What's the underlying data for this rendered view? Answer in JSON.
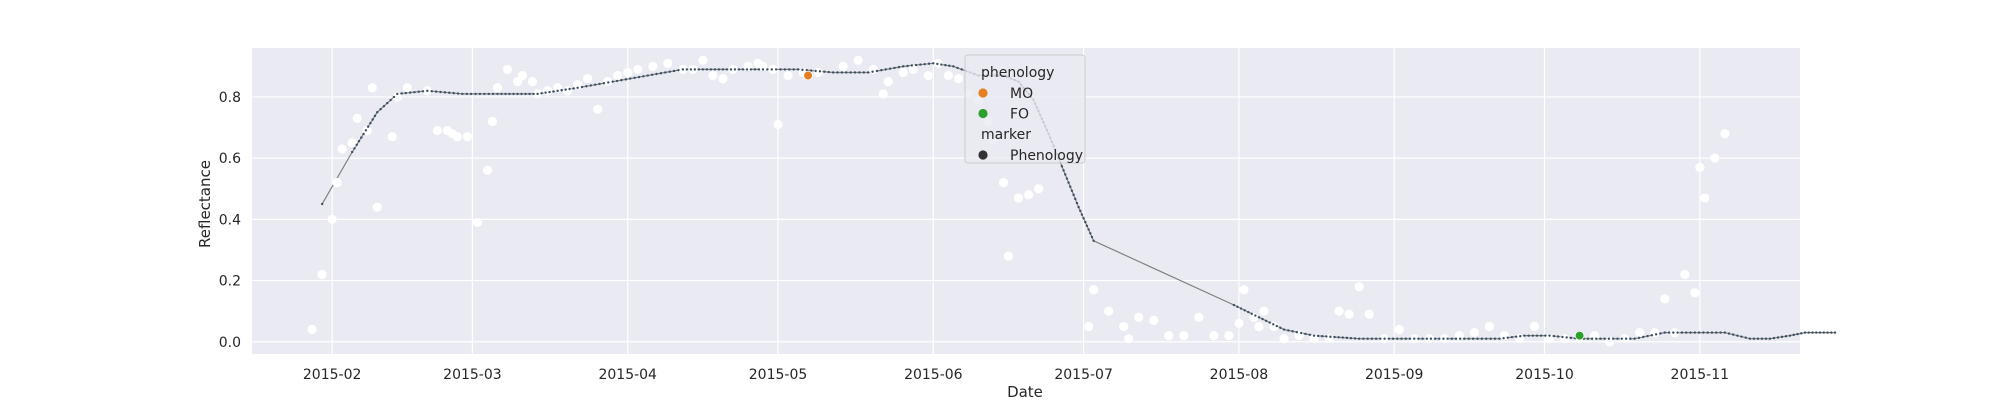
{
  "chart_data": {
    "type": "line",
    "xlabel": "Date",
    "ylabel": "Reflectance",
    "xlim": [
      "2015-01-16",
      "2015-11-21"
    ],
    "ylim": [
      -0.04,
      0.96
    ],
    "grid": true,
    "x_ticks": [
      "2015-02-01",
      "2015-03-01",
      "2015-04-01",
      "2015-05-01",
      "2015-06-01",
      "2015-07-01",
      "2015-08-01",
      "2015-09-01",
      "2015-10-01",
      "2015-11-01"
    ],
    "x_tick_labels": [
      "2015-02",
      "2015-03",
      "2015-04",
      "2015-05",
      "2015-06",
      "2015-07",
      "2015-08",
      "2015-09",
      "2015-10",
      "2015-11"
    ],
    "y_ticks": [
      0.0,
      0.2,
      0.4,
      0.6,
      0.8
    ],
    "y_tick_labels": [
      "0.0",
      "0.2",
      "0.4",
      "0.6",
      "0.8"
    ],
    "legend": {
      "placement": "top-center",
      "sections": [
        {
          "title": "phenology",
          "entries": [
            {
              "label": "MO",
              "color": "#e67e22"
            },
            {
              "label": "FO",
              "color": "#2ca02c"
            }
          ]
        },
        {
          "title": "marker",
          "entries": [
            {
              "label": "Phenology",
              "color": "#333333"
            }
          ]
        }
      ]
    },
    "colors": {
      "panel_bg": "#eaeaf2",
      "grid": "#ffffff",
      "raw_points": "#ffffff",
      "fitted_line": "#808080",
      "fitted_markers": "#3b4f5f",
      "MO": "#e67e22",
      "FO": "#2ca02c"
    },
    "series": [
      {
        "kind": "scatter",
        "role": "raw observations",
        "points": [
          [
            "2015-01-28",
            0.04
          ],
          [
            "2015-01-30",
            0.22
          ],
          [
            "2015-02-01",
            0.4
          ],
          [
            "2015-02-02",
            0.52
          ],
          [
            "2015-02-03",
            0.63
          ],
          [
            "2015-02-05",
            0.65
          ],
          [
            "2015-02-06",
            0.73
          ],
          [
            "2015-02-08",
            0.69
          ],
          [
            "2015-02-09",
            0.83
          ],
          [
            "2015-02-10",
            0.44
          ],
          [
            "2015-02-13",
            0.67
          ],
          [
            "2015-02-14",
            0.8
          ],
          [
            "2015-02-16",
            0.83
          ],
          [
            "2015-02-20",
            0.82
          ],
          [
            "2015-02-22",
            0.69
          ],
          [
            "2015-02-24",
            0.69
          ],
          [
            "2015-02-25",
            0.68
          ],
          [
            "2015-02-26",
            0.67
          ],
          [
            "2015-02-28",
            0.67
          ],
          [
            "2015-03-02",
            0.39
          ],
          [
            "2015-03-04",
            0.56
          ],
          [
            "2015-03-05",
            0.72
          ],
          [
            "2015-03-06",
            0.83
          ],
          [
            "2015-03-08",
            0.89
          ],
          [
            "2015-03-10",
            0.85
          ],
          [
            "2015-03-11",
            0.87
          ],
          [
            "2015-03-13",
            0.85
          ],
          [
            "2015-03-14",
            0.81
          ],
          [
            "2015-03-16",
            0.82
          ],
          [
            "2015-03-18",
            0.83
          ],
          [
            "2015-03-20",
            0.82
          ],
          [
            "2015-03-22",
            0.84
          ],
          [
            "2015-03-24",
            0.86
          ],
          [
            "2015-03-26",
            0.76
          ],
          [
            "2015-03-28",
            0.85
          ],
          [
            "2015-03-30",
            0.87
          ],
          [
            "2015-04-01",
            0.88
          ],
          [
            "2015-04-03",
            0.89
          ],
          [
            "2015-04-06",
            0.9
          ],
          [
            "2015-04-09",
            0.91
          ],
          [
            "2015-04-12",
            0.89
          ],
          [
            "2015-04-14",
            0.89
          ],
          [
            "2015-04-16",
            0.92
          ],
          [
            "2015-04-18",
            0.87
          ],
          [
            "2015-04-20",
            0.86
          ],
          [
            "2015-04-22",
            0.89
          ],
          [
            "2015-04-25",
            0.9
          ],
          [
            "2015-04-27",
            0.91
          ],
          [
            "2015-04-28",
            0.9
          ],
          [
            "2015-04-30",
            0.89
          ],
          [
            "2015-05-01",
            0.71
          ],
          [
            "2015-05-03",
            0.87
          ],
          [
            "2015-05-06",
            0.88
          ],
          [
            "2015-05-09",
            0.88
          ],
          [
            "2015-05-14",
            0.9
          ],
          [
            "2015-05-17",
            0.92
          ],
          [
            "2015-05-20",
            0.89
          ],
          [
            "2015-05-22",
            0.81
          ],
          [
            "2015-05-23",
            0.85
          ],
          [
            "2015-05-26",
            0.88
          ],
          [
            "2015-05-28",
            0.89
          ],
          [
            "2015-05-31",
            0.87
          ],
          [
            "2015-06-02",
            0.91
          ],
          [
            "2015-06-04",
            0.87
          ],
          [
            "2015-06-06",
            0.86
          ],
          [
            "2015-06-08",
            0.81
          ],
          [
            "2015-06-10",
            0.79
          ],
          [
            "2015-06-12",
            0.72
          ],
          [
            "2015-06-13",
            0.66
          ],
          [
            "2015-06-15",
            0.52
          ],
          [
            "2015-06-16",
            0.28
          ],
          [
            "2015-06-18",
            0.47
          ],
          [
            "2015-06-20",
            0.48
          ],
          [
            "2015-06-22",
            0.5
          ],
          [
            "2015-07-02",
            0.05
          ],
          [
            "2015-07-03",
            0.17
          ],
          [
            "2015-07-06",
            0.1
          ],
          [
            "2015-07-09",
            0.05
          ],
          [
            "2015-07-10",
            0.01
          ],
          [
            "2015-07-12",
            0.08
          ],
          [
            "2015-07-15",
            0.07
          ],
          [
            "2015-07-18",
            0.02
          ],
          [
            "2015-07-21",
            0.02
          ],
          [
            "2015-07-24",
            0.08
          ],
          [
            "2015-07-27",
            0.02
          ],
          [
            "2015-07-30",
            0.02
          ],
          [
            "2015-08-01",
            0.06
          ],
          [
            "2015-08-02",
            0.17
          ],
          [
            "2015-08-04",
            0.08
          ],
          [
            "2015-08-05",
            0.05
          ],
          [
            "2015-08-06",
            0.1
          ],
          [
            "2015-08-08",
            0.05
          ],
          [
            "2015-08-10",
            0.01
          ],
          [
            "2015-08-13",
            0.02
          ],
          [
            "2015-08-16",
            0.01
          ],
          [
            "2015-08-19",
            0.01
          ],
          [
            "2015-08-21",
            0.1
          ],
          [
            "2015-08-23",
            0.09
          ],
          [
            "2015-08-25",
            0.18
          ],
          [
            "2015-08-27",
            0.09
          ],
          [
            "2015-08-30",
            0.01
          ],
          [
            "2015-09-02",
            0.04
          ],
          [
            "2015-09-05",
            0.01
          ],
          [
            "2015-09-08",
            0.01
          ],
          [
            "2015-09-11",
            0.01
          ],
          [
            "2015-09-14",
            0.02
          ],
          [
            "2015-09-17",
            0.03
          ],
          [
            "2015-09-20",
            0.05
          ],
          [
            "2015-09-23",
            0.02
          ],
          [
            "2015-09-26",
            0.01
          ],
          [
            "2015-09-29",
            0.05
          ],
          [
            "2015-10-02",
            0.01
          ],
          [
            "2015-10-05",
            0.01
          ],
          [
            "2015-10-08",
            0.01
          ],
          [
            "2015-10-11",
            0.02
          ],
          [
            "2015-10-14",
            0.0
          ],
          [
            "2015-10-17",
            0.01
          ],
          [
            "2015-10-20",
            0.03
          ],
          [
            "2015-10-23",
            0.03
          ],
          [
            "2015-10-25",
            0.14
          ],
          [
            "2015-10-27",
            0.03
          ],
          [
            "2015-10-29",
            0.22
          ],
          [
            "2015-10-31",
            0.16
          ],
          [
            "2015-11-01",
            0.57
          ],
          [
            "2015-11-02",
            0.47
          ],
          [
            "2015-11-04",
            0.6
          ],
          [
            "2015-11-06",
            0.68
          ]
        ]
      },
      {
        "kind": "line",
        "role": "fitted curve",
        "points": [
          [
            "2015-01-30",
            0.45
          ],
          [
            "2015-02-05",
            0.62
          ],
          [
            "2015-02-10",
            0.75
          ],
          [
            "2015-02-14",
            0.81
          ],
          [
            "2015-02-20",
            0.82
          ],
          [
            "2015-02-27",
            0.81
          ],
          [
            "2015-03-06",
            0.81
          ],
          [
            "2015-03-14",
            0.81
          ],
          [
            "2015-03-22",
            0.83
          ],
          [
            "2015-03-29",
            0.85
          ],
          [
            "2015-04-05",
            0.87
          ],
          [
            "2015-04-12",
            0.89
          ],
          [
            "2015-04-20",
            0.89
          ],
          [
            "2015-04-28",
            0.89
          ],
          [
            "2015-05-05",
            0.89
          ],
          [
            "2015-05-12",
            0.88
          ],
          [
            "2015-05-19",
            0.88
          ],
          [
            "2015-05-26",
            0.9
          ],
          [
            "2015-06-01",
            0.91
          ],
          [
            "2015-06-05",
            0.9
          ],
          [
            "2015-06-10",
            0.87
          ],
          [
            "2015-06-15",
            0.87
          ],
          [
            "2015-06-18",
            0.85
          ],
          [
            "2015-06-21",
            0.79
          ],
          [
            "2015-06-24",
            0.68
          ],
          [
            "2015-06-27",
            0.56
          ],
          [
            "2015-06-30",
            0.44
          ],
          [
            "2015-07-03",
            0.33
          ],
          [
            "2015-07-31",
            0.12
          ],
          [
            "2015-08-05",
            0.08
          ],
          [
            "2015-08-10",
            0.04
          ],
          [
            "2015-08-16",
            0.02
          ],
          [
            "2015-08-25",
            0.01
          ],
          [
            "2015-09-05",
            0.01
          ],
          [
            "2015-09-15",
            0.01
          ],
          [
            "2015-09-22",
            0.01
          ],
          [
            "2015-09-27",
            0.02
          ],
          [
            "2015-10-02",
            0.02
          ],
          [
            "2015-10-08",
            0.01
          ],
          [
            "2015-10-13",
            0.01
          ],
          [
            "2015-10-19",
            0.01
          ],
          [
            "2015-10-25",
            0.03
          ],
          [
            "2015-10-31",
            0.03
          ],
          [
            "2015-11-06",
            0.03
          ],
          [
            "2015-11-11",
            0.01
          ],
          [
            "2015-11-15",
            0.01
          ],
          [
            "2015-11-19",
            0.02
          ],
          [
            "2015-11-22",
            0.03
          ],
          [
            "2015-11-25",
            0.03
          ],
          [
            "2015-11-28",
            0.03
          ]
        ]
      },
      {
        "kind": "scatter",
        "role": "MO",
        "points": [
          [
            "2015-05-07",
            0.87
          ]
        ]
      },
      {
        "kind": "scatter",
        "role": "FO",
        "points": [
          [
            "2015-10-08",
            0.02
          ]
        ]
      }
    ]
  }
}
